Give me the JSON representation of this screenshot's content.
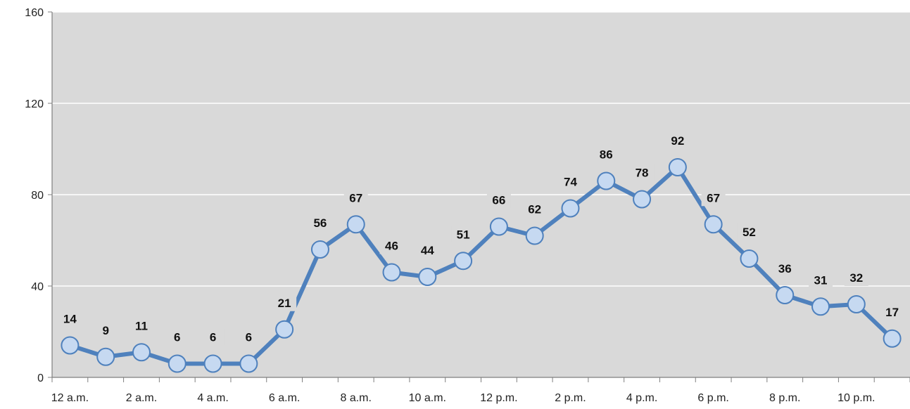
{
  "chart_data": {
    "type": "line",
    "x": [
      "12 a.m.",
      "1 a.m.",
      "2 a.m.",
      "3 a.m.",
      "4 a.m.",
      "5 a.m.",
      "6 a.m.",
      "7 a.m.",
      "8 a.m.",
      "9 a.m.",
      "10 a.m.",
      "11 a.m.",
      "12 p.m.",
      "1 p.m.",
      "2 p.m.",
      "3 p.m.",
      "4 p.m.",
      "5 p.m.",
      "6 p.m.",
      "7 p.m.",
      "8 p.m.",
      "9 p.m.",
      "10 p.m.",
      "11 p.m."
    ],
    "x_tick_labels": [
      "12 a.m.",
      "2 a.m.",
      "4 a.m.",
      "6 a.m.",
      "8 a.m.",
      "10 a.m.",
      "12 p.m.",
      "2 p.m.",
      "4 p.m.",
      "6 p.m.",
      "8 p.m.",
      "10 p.m."
    ],
    "series": [
      {
        "values": [
          14,
          9,
          11,
          6,
          6,
          6,
          21,
          56,
          67,
          46,
          44,
          51,
          66,
          62,
          74,
          86,
          78,
          92,
          67,
          52,
          36,
          31,
          32,
          17
        ]
      }
    ],
    "ylim": [
      0,
      160
    ],
    "yticks": [
      "0",
      "40",
      "80",
      "120",
      "160"
    ],
    "title": "",
    "xlabel": "",
    "ylabel": "",
    "grid": true,
    "legend": "none",
    "colors": {
      "line": "#4f81bd",
      "marker_fill": "#c6d9f1",
      "plot_background": "#d9d9d9",
      "gridline": "#ffffff",
      "axis": "#7f7f7f"
    }
  }
}
